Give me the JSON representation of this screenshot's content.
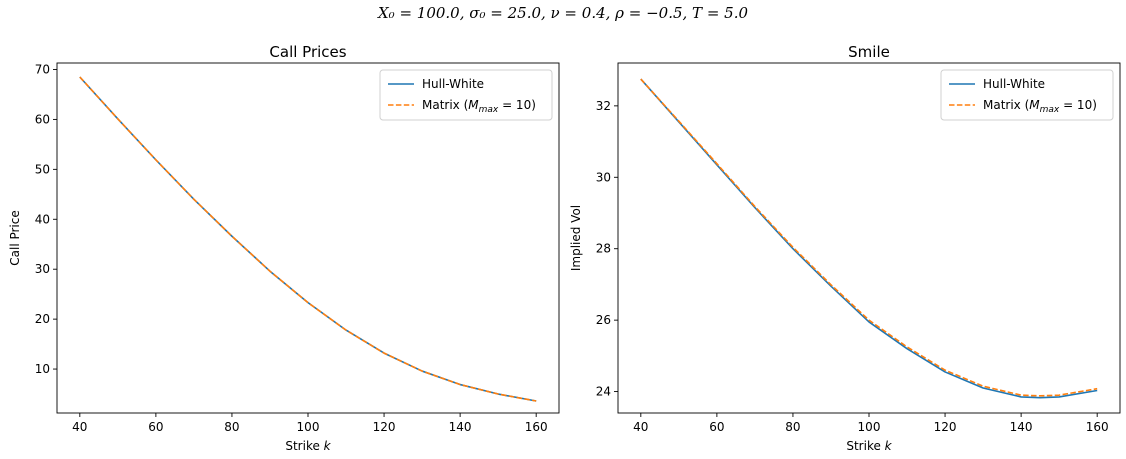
{
  "figure": {
    "suptitle": "X₀ = 100.0, σ₀ = 25.0, ν = 0.4, ρ = −0.5, T = 5.0"
  },
  "colors": {
    "hull_white": "#1f77b4",
    "matrix": "#ff7f0e"
  },
  "chart_data": [
    {
      "type": "line",
      "title": "Call Prices",
      "xlabel": "Strike k",
      "ylabel": "Call Price",
      "xlim": [
        34,
        166
      ],
      "ylim": [
        1.2,
        71.3
      ],
      "xticks": [
        40,
        60,
        80,
        100,
        120,
        140,
        160
      ],
      "yticks": [
        10,
        20,
        30,
        40,
        50,
        60,
        70
      ],
      "grid": false,
      "legend_position": "top-right",
      "x": [
        40,
        50,
        60,
        70,
        80,
        90,
        100,
        110,
        120,
        130,
        140,
        150,
        160
      ],
      "series": [
        {
          "name": "Hull-White",
          "style": "solid",
          "color": "#1f77b4",
          "values": [
            68.5,
            60.1,
            51.9,
            44.0,
            36.6,
            29.6,
            23.3,
            17.8,
            13.2,
            9.6,
            6.9,
            5.0,
            3.6
          ]
        },
        {
          "name": "Matrix (M_max = 10)",
          "style": "dashed",
          "color": "#ff7f0e",
          "values": [
            68.5,
            60.1,
            51.9,
            44.0,
            36.6,
            29.6,
            23.3,
            17.8,
            13.2,
            9.6,
            6.9,
            5.0,
            3.6
          ]
        }
      ]
    },
    {
      "type": "line",
      "title": "Smile",
      "xlabel": "Strike k",
      "ylabel": "Implied Vol",
      "xlim": [
        34,
        166
      ],
      "ylim": [
        23.4,
        33.2
      ],
      "xticks": [
        40,
        60,
        80,
        100,
        120,
        140,
        160
      ],
      "yticks": [
        24,
        26,
        28,
        30,
        32
      ],
      "grid": false,
      "legend_position": "top-right",
      "x": [
        40,
        50,
        60,
        70,
        80,
        90,
        100,
        110,
        120,
        130,
        140,
        145,
        150,
        160
      ],
      "series": [
        {
          "name": "Hull-White",
          "style": "solid",
          "color": "#1f77b4",
          "values": [
            32.75,
            31.55,
            30.35,
            29.15,
            28.0,
            26.95,
            25.95,
            25.2,
            24.55,
            24.1,
            23.85,
            23.83,
            23.85,
            24.03
          ]
        },
        {
          "name": "Matrix (M_max = 10)",
          "style": "dashed",
          "color": "#ff7f0e",
          "values": [
            32.75,
            31.57,
            30.38,
            29.18,
            28.04,
            26.99,
            26.0,
            25.25,
            24.6,
            24.15,
            23.9,
            23.88,
            23.9,
            24.08
          ]
        }
      ]
    }
  ]
}
